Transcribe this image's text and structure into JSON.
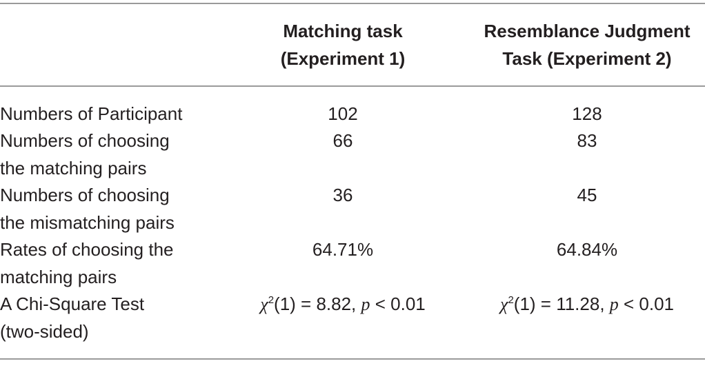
{
  "table": {
    "header": [
      [
        "Matching task",
        "(Experiment 1)"
      ],
      [
        "Resemblance Judgment",
        "Task (Experiment 2)"
      ]
    ],
    "rows": [
      {
        "label": [
          "Numbers of Participant"
        ],
        "cells": [
          "102",
          "128"
        ]
      },
      {
        "label": [
          "Numbers of choosing",
          "the matching pairs"
        ],
        "cells": [
          "66",
          "83"
        ]
      },
      {
        "label": [
          "Numbers of choosing",
          "the mismatching pairs"
        ],
        "cells": [
          "36",
          "45"
        ]
      },
      {
        "label": [
          "Rates of choosing the",
          "matching pairs"
        ],
        "cells": [
          "64.71%",
          "64.84%"
        ]
      }
    ],
    "stat_row": {
      "label": [
        "A Chi-Square Test",
        "(two-sided)"
      ],
      "cells": [
        {
          "symbol": "χ",
          "superscript": "2",
          "args": "(1) = 8.82, ",
          "p": "p",
          "comparison": " < 0.01"
        },
        {
          "symbol": "χ",
          "superscript": "2",
          "args": "(1) = 11.28, ",
          "p": "p",
          "comparison": " < 0.01"
        }
      ]
    }
  }
}
